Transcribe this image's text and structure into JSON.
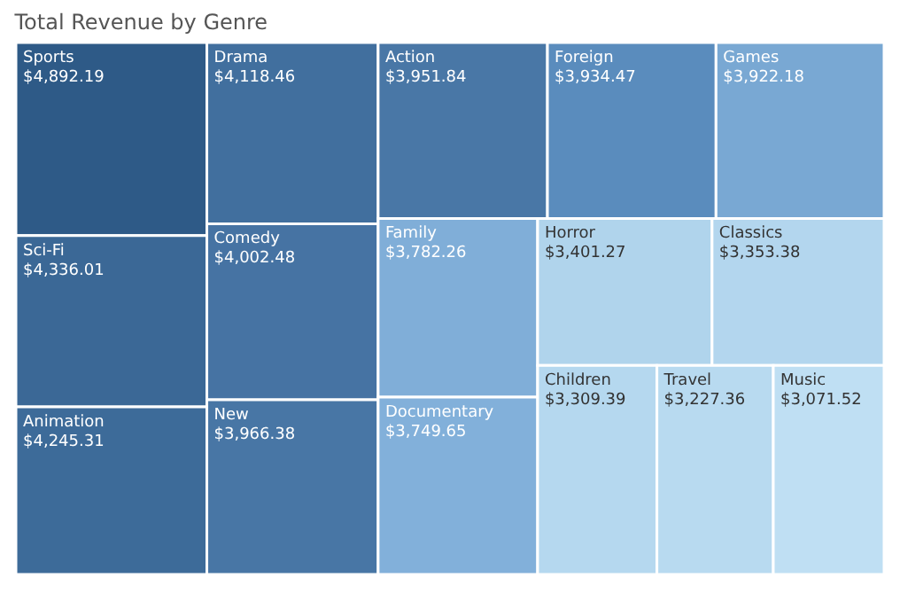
{
  "chart_data": {
    "type": "other",
    "title": "Total Revenue by Genre",
    "categories": [
      "Sports",
      "Sci-Fi",
      "Animation",
      "Drama",
      "Comedy",
      "New",
      "Action",
      "Foreign",
      "Games",
      "Family",
      "Documentary",
      "Horror",
      "Classics",
      "Children",
      "Travel",
      "Music"
    ],
    "values": [
      4892.19,
      4336.01,
      4245.31,
      4118.46,
      4002.48,
      3966.38,
      3951.84,
      3934.47,
      3922.18,
      3782.26,
      3749.65,
      3401.27,
      3353.38,
      3309.39,
      3227.36,
      3071.52
    ],
    "value_labels": [
      "$4,892.19",
      "$4,336.01",
      "$4,245.31",
      "$4,118.46",
      "$4,002.48",
      "$3,966.38",
      "$3,951.84",
      "$3,934.47",
      "$3,922.18",
      "$3,782.26",
      "$3,749.65",
      "$3,401.27",
      "$3,353.38",
      "$3,309.39",
      "$3,227.36",
      "$3,071.52"
    ],
    "colors": [
      "#2e5a87",
      "#3b6896",
      "#3d6b99",
      "#416f9e",
      "#4673a3",
      "#4876a5",
      "#4977a6",
      "#5a8cbd",
      "#79a8d3",
      "#80aed8",
      "#82b0da",
      "#b0d4ec",
      "#b3d6ee",
      "#b5d8ef",
      "#b8daf0",
      "#bfdff3"
    ]
  }
}
